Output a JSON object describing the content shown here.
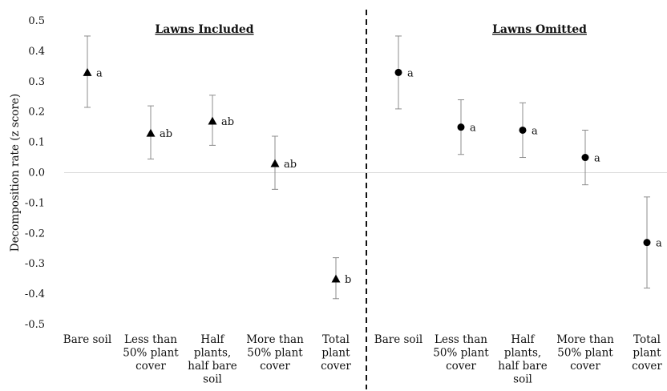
{
  "chart_data": {
    "type": "scatter",
    "ylabel": "Decomposition rate (z score)",
    "ylim": [
      -0.5,
      0.5
    ],
    "yticks": [
      "0.5",
      "0.4",
      "0.3",
      "0.2",
      "0.1",
      "0.0",
      "-0.1",
      "-0.2",
      "-0.3",
      "-0.4",
      "-0.5"
    ],
    "categories": [
      [
        "Bare soil"
      ],
      [
        "Less than",
        "50% plant",
        "cover"
      ],
      [
        "Half",
        "plants,",
        "half bare",
        "soil"
      ],
      [
        "More than",
        "50% plant",
        "cover"
      ],
      [
        "Total",
        "plant",
        "cover"
      ]
    ],
    "panels": [
      {
        "title": "Lawns Included",
        "marker": "triangle",
        "points": [
          {
            "y": 0.33,
            "err_low": 0.215,
            "err_high": 0.45,
            "label": "a"
          },
          {
            "y": 0.13,
            "err_low": 0.045,
            "err_high": 0.22,
            "label": "ab"
          },
          {
            "y": 0.17,
            "err_low": 0.09,
            "err_high": 0.255,
            "label": "ab"
          },
          {
            "y": 0.03,
            "err_low": -0.055,
            "err_high": 0.12,
            "label": "ab"
          },
          {
            "y": -0.35,
            "err_low": -0.415,
            "err_high": -0.28,
            "label": "b"
          }
        ]
      },
      {
        "title": "Lawns Omitted",
        "marker": "circle",
        "points": [
          {
            "y": 0.33,
            "err_low": 0.21,
            "err_high": 0.45,
            "label": "a"
          },
          {
            "y": 0.15,
            "err_low": 0.06,
            "err_high": 0.24,
            "label": "a"
          },
          {
            "y": 0.14,
            "err_low": 0.05,
            "err_high": 0.23,
            "label": "a"
          },
          {
            "y": 0.05,
            "err_low": -0.04,
            "err_high": 0.14,
            "label": "a"
          },
          {
            "y": -0.23,
            "err_low": -0.38,
            "err_high": -0.08,
            "label": "a"
          }
        ]
      }
    ],
    "grid": false,
    "zero_line": true,
    "divider": "dashed"
  }
}
